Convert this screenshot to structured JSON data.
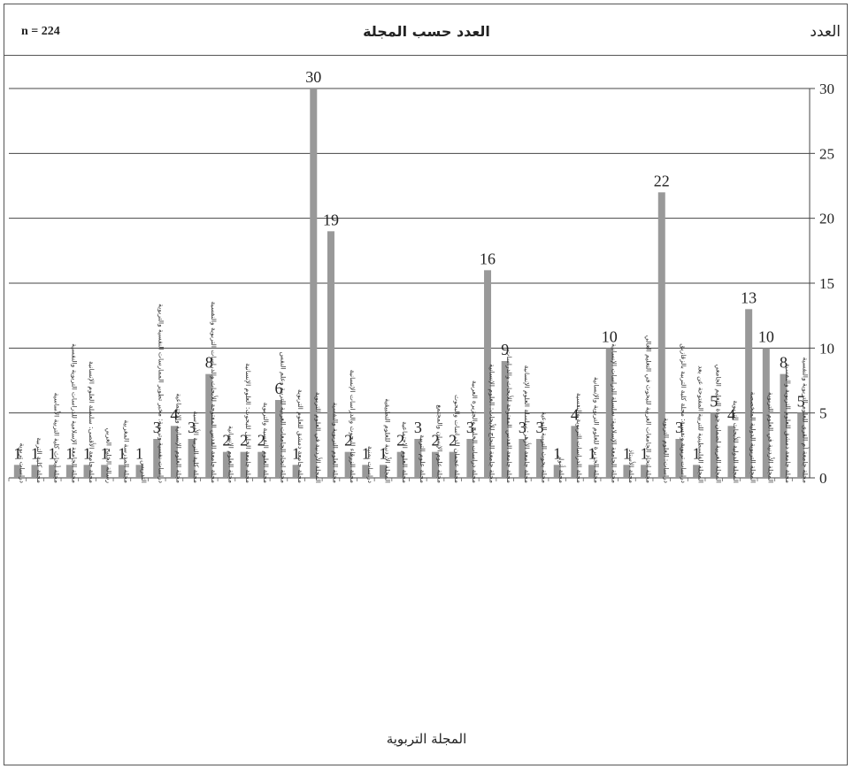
{
  "header": {
    "n_label": "n = 224",
    "title": "العدد حسب المجلة",
    "y_axis_label": "العدد"
  },
  "footer": {
    "x_axis_label": "المجلة التربوية"
  },
  "chart_data": {
    "type": "bar",
    "title": "العدد حسب المجلة",
    "xlabel": "المجلة التربوية",
    "ylabel": "العدد",
    "ylim": [
      0,
      30
    ],
    "yticks": [
      0,
      5,
      10,
      15,
      20,
      25,
      30
    ],
    "y_axis_side": "right",
    "grid": true,
    "bar_color": "#999999",
    "categories": [
      "دراسات تربوية",
      "مجلة كلية التربية",
      "مجلة أبحاث كلية التربية الأساسية",
      "مجلة الجامعة الإسلامية للدراسات التربوية والنفسية",
      "مجلة جامعة الأقصى: سلسلة العلوم الإنسانية",
      "رسالة الخليج العربي",
      "مجلة المدرسة المغربية",
      "التدريس",
      "دراسات نفسية وتربوية: مخبر تطوير الممارسات النفسية والتربوية",
      "مجلة العلوم الإنسانية والاجتماعية",
      "مجلة كلية التربية الأساسية",
      "مجلة جامعة القدس المفتوحة للأبحاث والدراسات التربوية والنفسية",
      "مجلة العلوم الإنسانية",
      "مجلة جامعة الخليل للبحوث: العلوم الإنسانية",
      "مجلة العلوم النفسية والتربوية",
      "مجلة اتحاد الجامعات العربية للتربية وعلم النفس",
      "مجلة جامعة دمشق للعلوم التربوية",
      "المجلة الأردنية في العلوم التربوية",
      "مجلة العلوم التربوية والنفسية",
      "مجلة الزرقاء للبحوث والدراسات الإنسانية",
      "دراسات يمنية",
      "المجلة الأردنية للعلوم التطبيقية",
      "مجلة العلوم الاجتماعية",
      "مجلة علوم التربية",
      "مجلة علوم الإنسان والمجتمع",
      "مجلة عجمان للدراسات والبحوث",
      "مجلة دراسات الخليج والجزيرة العربية",
      "مجلة جامعة النجاح للأبحاث: العلوم الإنسانية",
      "مجلة جامعة القدس المفتوحة للأبحاث والدراسات",
      "مجلة جامعة الأزهر: سلسلة العلوم الإنسانية",
      "مجلة بحوث التربية النوعية",
      "مجلة أنوار",
      "مجلة الدراسات التربوية والنفسية",
      "مجلة الجزيرة للعلوم التربوية والإنسانية",
      "مجلة الجامعة الإسلامية: سلسلة الدراسات الإنسانية",
      "مجلة الأستاذ",
      "مجلة اتحاد الجامعات العربية للبحوث في التعليم العالي",
      "دراسات: العلوم التربوية",
      "دراسات تربوية ونفسية: مجلة كلية التربية بالزقازيق",
      "المجلة الفلسطينية للتربية المفتوحة عن بعد",
      "المجلة العربية لضمان جودة التعليم الجامعي",
      "المجلة الدولية للأبحاث التربوية",
      "المجلة التربوية الدولية المتخصصة",
      "المجلة الأردنية في العلوم التربوية",
      "مجلة جامعة دمشق للعلوم التربوية والنفسية",
      "مجلة جامعة أم القرى للعلوم التربوية والنفسية"
    ],
    "values": [
      1,
      1,
      1,
      1,
      1,
      1,
      1,
      1,
      3,
      4,
      3,
      8,
      2,
      2,
      2,
      6,
      1,
      30,
      19,
      2,
      1,
      1,
      2,
      3,
      2,
      2,
      3,
      16,
      9,
      3,
      3,
      1,
      4,
      1,
      10,
      1,
      1,
      22,
      3,
      1,
      5,
      4,
      13,
      10,
      8,
      5
    ]
  }
}
